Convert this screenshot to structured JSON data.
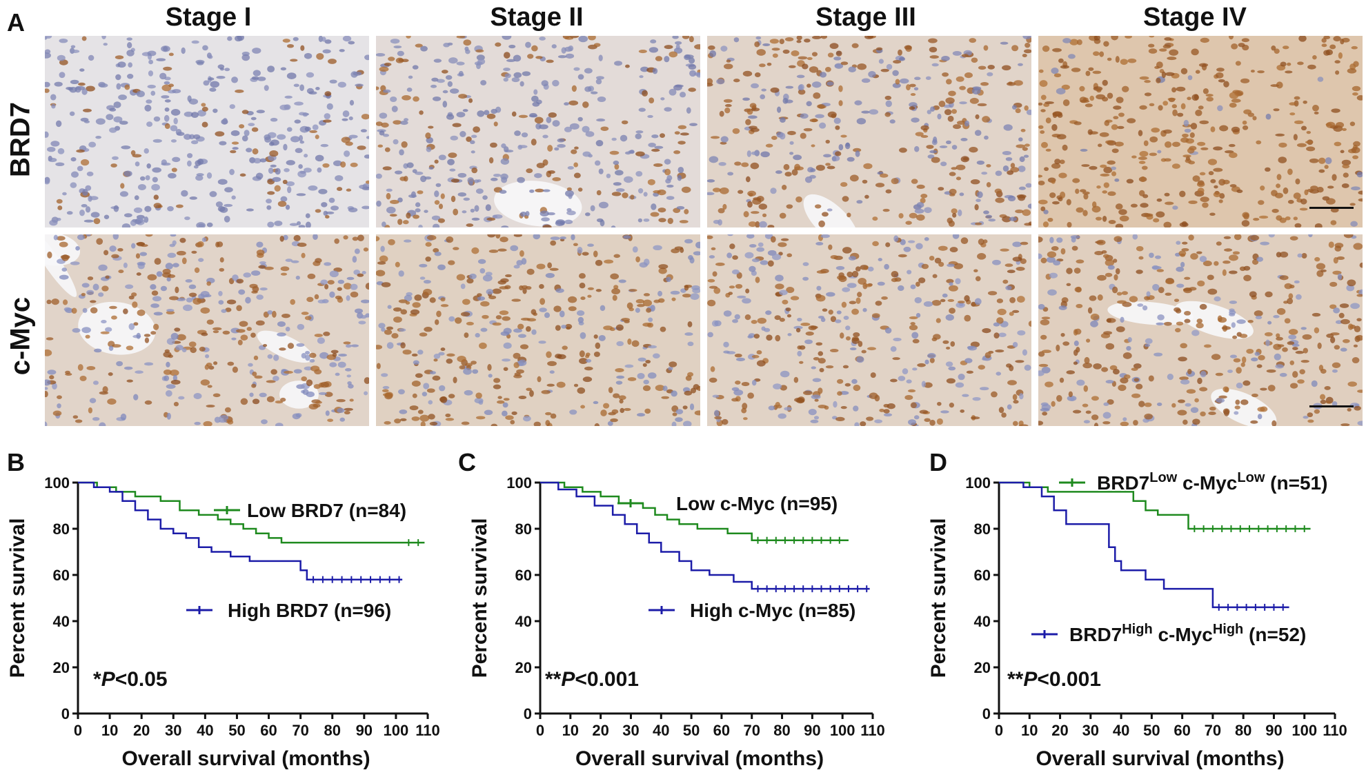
{
  "figure": {
    "panel_a": {
      "letter": "A",
      "stages": [
        "Stage I",
        "Stage II",
        "Stage III",
        "Stage IV"
      ],
      "rows": [
        "BRD7",
        "c-Myc"
      ],
      "stain_intensity": {
        "BRD7": [
          0.15,
          0.35,
          0.55,
          0.95
        ],
        "c-Myc": [
          0.55,
          0.65,
          0.6,
          0.7
        ]
      },
      "colors": {
        "hematoxylin": "#6f7fb8",
        "dab": "#9a5a23",
        "background": "#eef0f6"
      }
    }
  },
  "chart_data": [
    {
      "panel": "B",
      "type": "line",
      "xlabel": "Overall survival (months)",
      "ylabel": "Percent survival",
      "xlim": [
        0,
        110
      ],
      "ylim": [
        0,
        100
      ],
      "xticks": [
        0,
        10,
        20,
        30,
        40,
        50,
        60,
        70,
        80,
        90,
        100,
        110
      ],
      "yticks": [
        0,
        20,
        40,
        60,
        80,
        100
      ],
      "annotation": {
        "prefix": "*",
        "italic": "P",
        "suffix": "<0.05"
      },
      "series": [
        {
          "name": "Low BRD7 (n=84)",
          "color": "#1e8a1e",
          "x": [
            0,
            6,
            12,
            18,
            26,
            32,
            38,
            44,
            48,
            52,
            56,
            60,
            64,
            102,
            109
          ],
          "y": [
            100,
            98,
            96,
            94,
            92,
            88,
            86,
            84,
            82,
            80,
            78,
            76,
            74,
            74,
            74
          ]
        },
        {
          "name": "High BRD7 (n=96)",
          "color": "#1c1ca8",
          "x": [
            0,
            5,
            10,
            14,
            18,
            22,
            26,
            30,
            34,
            38,
            42,
            48,
            54,
            64,
            70,
            72,
            102
          ],
          "y": [
            100,
            98,
            96,
            92,
            88,
            84,
            80,
            78,
            76,
            72,
            70,
            68,
            66,
            66,
            62,
            58,
            58
          ]
        }
      ]
    },
    {
      "panel": "C",
      "type": "line",
      "xlabel": "Overall survival (months)",
      "ylabel": "Percent survival",
      "xlim": [
        0,
        110
      ],
      "ylim": [
        0,
        100
      ],
      "xticks": [
        0,
        10,
        20,
        30,
        40,
        50,
        60,
        70,
        80,
        90,
        100,
        110
      ],
      "yticks": [
        0,
        20,
        40,
        60,
        80,
        100
      ],
      "annotation": {
        "prefix": "**",
        "italic": "P",
        "suffix": "<0.001"
      },
      "series": [
        {
          "name": "Low c-Myc (n=95)",
          "color": "#1e8a1e",
          "x": [
            0,
            8,
            14,
            20,
            26,
            34,
            38,
            42,
            46,
            52,
            62,
            70,
            102
          ],
          "y": [
            100,
            98,
            96,
            94,
            91,
            89,
            86,
            84,
            82,
            80,
            78,
            75,
            75
          ]
        },
        {
          "name": "High c-Myc (n=85)",
          "color": "#1c1ca8",
          "x": [
            0,
            6,
            12,
            18,
            24,
            28,
            32,
            36,
            40,
            46,
            50,
            56,
            64,
            70,
            109
          ],
          "y": [
            100,
            97,
            94,
            90,
            86,
            82,
            78,
            74,
            70,
            66,
            62,
            60,
            57,
            54,
            54
          ]
        }
      ]
    },
    {
      "panel": "D",
      "type": "line",
      "xlabel": "Overall survival (months)",
      "ylabel": "Percent survival",
      "xlim": [
        0,
        110
      ],
      "ylim": [
        0,
        100
      ],
      "xticks": [
        0,
        10,
        20,
        30,
        40,
        50,
        60,
        70,
        80,
        90,
        100,
        110
      ],
      "yticks": [
        0,
        20,
        40,
        60,
        80,
        100
      ],
      "annotation": {
        "prefix": "**",
        "italic": "P",
        "suffix": "<0.001"
      },
      "series": [
        {
          "name_parts": [
            "BRD7",
            "Low",
            " c-Myc",
            "Low",
            " (n=51)"
          ],
          "name": "BRD7Low c-MycLow (n=51)",
          "color": "#1e8a1e",
          "x": [
            0,
            10,
            16,
            40,
            44,
            48,
            52,
            62,
            102
          ],
          "y": [
            100,
            98,
            96,
            96,
            92,
            88,
            86,
            80,
            80
          ]
        },
        {
          "name_parts": [
            "BRD7",
            "High",
            " c-Myc",
            "High",
            " (n=52)"
          ],
          "name": "BRD7High c-MycHigh (n=52)",
          "color": "#1c1ca8",
          "x": [
            0,
            8,
            14,
            18,
            22,
            36,
            38,
            40,
            48,
            54,
            70,
            95
          ],
          "y": [
            100,
            98,
            94,
            88,
            82,
            72,
            66,
            62,
            58,
            54,
            46,
            46
          ]
        }
      ]
    }
  ]
}
